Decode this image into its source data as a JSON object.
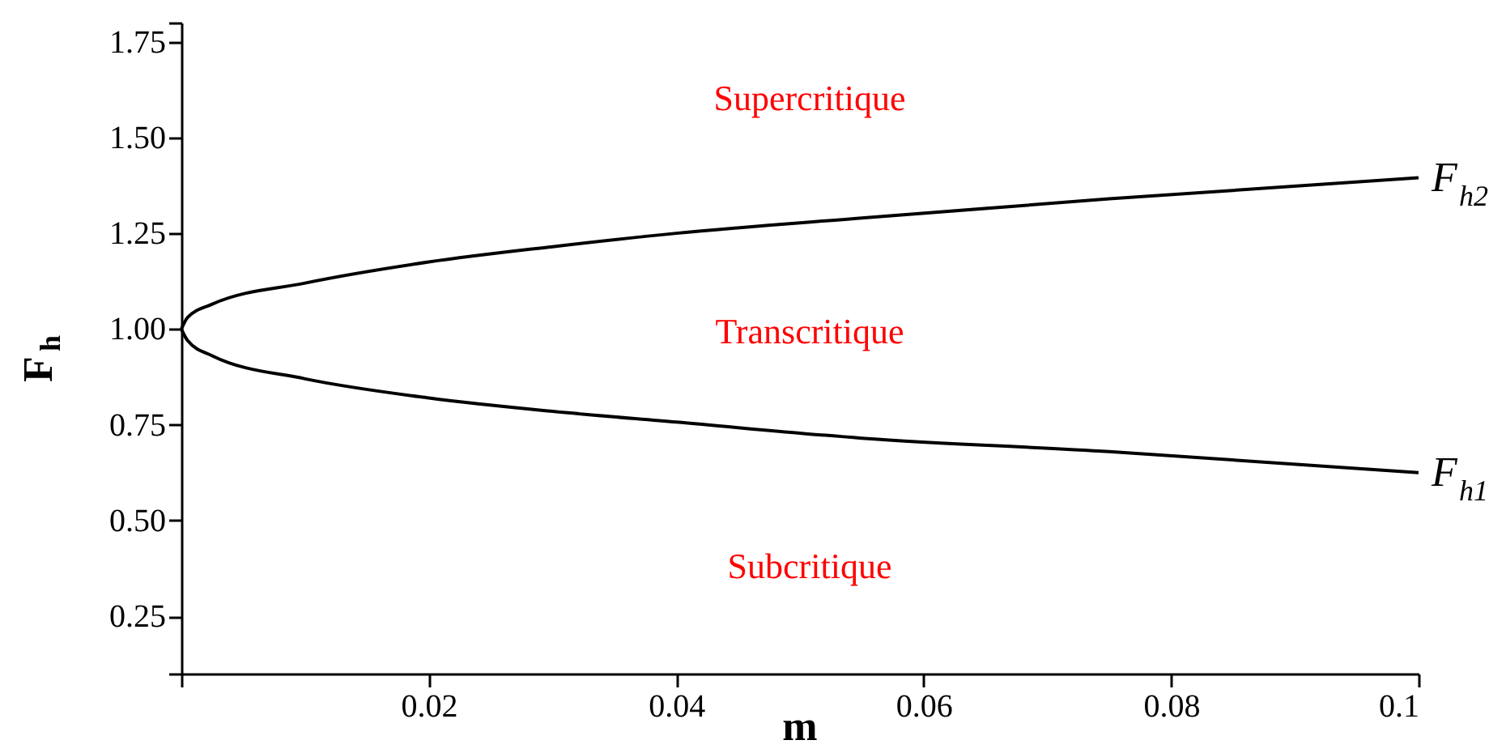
{
  "chart_data": {
    "type": "line",
    "xlabel": "m",
    "ylabel": "F$_{h}$",
    "x": [
      0,
      0.0005,
      0.0025,
      0.01,
      0.02,
      0.03,
      0.04,
      0.055,
      0.075,
      0.1
    ],
    "series": [
      {
        "name": "F$_{h2}$",
        "color": "#000000",
        "values": [
          1.0,
          1.03,
          1.065,
          1.12,
          1.175,
          1.215,
          1.25,
          1.29,
          1.34,
          1.395
        ]
      },
      {
        "name": "F$_{h1}$",
        "color": "#000000",
        "values": [
          1.0,
          0.97,
          0.93,
          0.87,
          0.82,
          0.785,
          0.757,
          0.715,
          0.68,
          0.625
        ]
      }
    ],
    "xlim": [
      0,
      0.1
    ],
    "ylim": [
      0.1,
      1.8
    ],
    "xticks": [
      {
        "value": 0,
        "label": null
      },
      {
        "value": 0.02,
        "label": "0.02"
      },
      {
        "value": 0.04,
        "label": "0.04"
      },
      {
        "value": 0.06,
        "label": "0.06"
      },
      {
        "value": 0.08,
        "label": "0.08"
      },
      {
        "value": 0.1,
        "label": "0.1"
      }
    ],
    "yticks": [
      {
        "value": 0.1,
        "label": null
      },
      {
        "value": 0.25,
        "label": "0.25"
      },
      {
        "value": 0.5,
        "label": "0.50"
      },
      {
        "value": 0.75,
        "label": "0.75"
      },
      {
        "value": 1.0,
        "label": "1.00"
      },
      {
        "value": 1.25,
        "label": "1.25"
      },
      {
        "value": 1.5,
        "label": "1.50"
      },
      {
        "value": 1.75,
        "label": "1.75"
      },
      {
        "value": 1.8,
        "label": null
      }
    ],
    "annotations": [
      "Supercritique",
      "Transcritique",
      "Subcritique"
    ]
  }
}
